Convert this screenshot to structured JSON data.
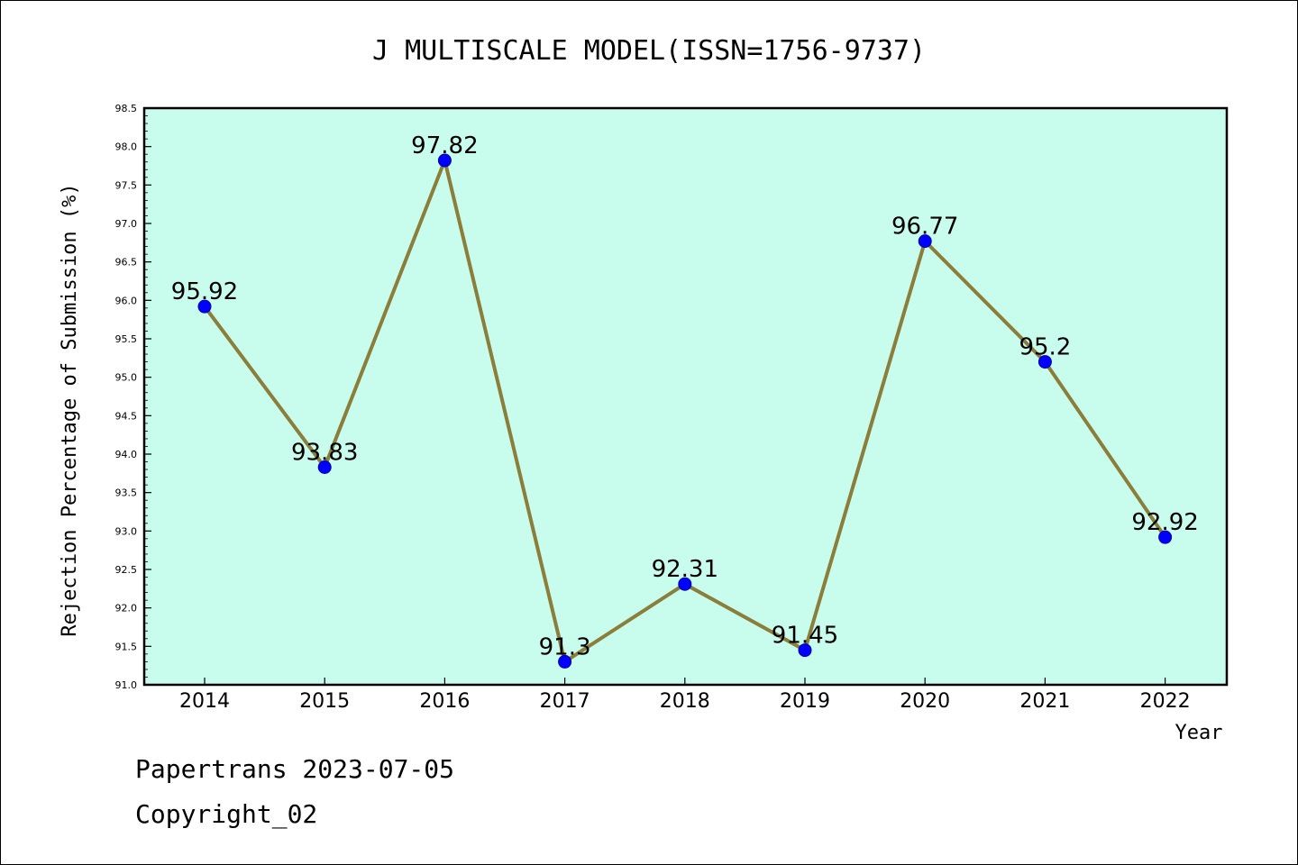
{
  "chart_data": {
    "type": "line",
    "title": "J MULTISCALE MODEL(ISSN=1756-9737)",
    "xlabel": "Year",
    "ylabel": "Rejection Percentage of Submission (%)",
    "categories": [
      "2014",
      "2015",
      "2016",
      "2017",
      "2018",
      "2019",
      "2020",
      "2021",
      "2022"
    ],
    "values": [
      95.92,
      93.83,
      97.82,
      91.3,
      92.31,
      91.45,
      96.77,
      95.2,
      92.92
    ],
    "data_labels": [
      "95.92",
      "93.83",
      "97.82",
      "91.3",
      "92.31",
      "91.45",
      "96.77",
      "95.2",
      "92.92"
    ],
    "ylim": [
      91.0,
      98.5
    ],
    "yticks": [
      "91.0",
      "91.5",
      "92.0",
      "92.5",
      "93.0",
      "93.5",
      "94.0",
      "94.5",
      "95.0",
      "95.5",
      "96.0",
      "96.5",
      "97.0",
      "97.5",
      "98.0",
      "98.5"
    ],
    "grid": false,
    "colors": {
      "plot_background": "#c8fcec",
      "line": "#8b7d3a",
      "marker": "#0000ff"
    }
  },
  "footer": {
    "line1": "Papertrans 2023-07-05",
    "line2": "Copyright_02"
  }
}
